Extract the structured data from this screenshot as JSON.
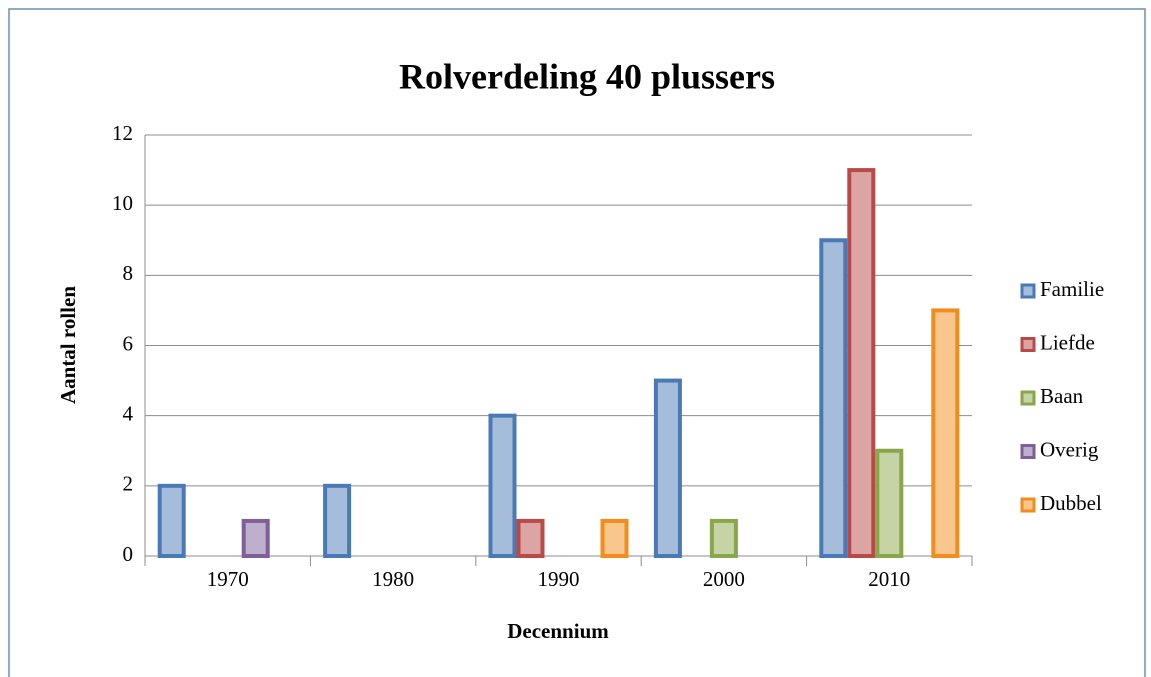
{
  "chart_data": {
    "type": "bar",
    "title": "Rolverdeling 40 plussers",
    "x_label": "Decennium",
    "y_label": "Aantal rollen",
    "categories": [
      "1970",
      "1980",
      "1990",
      "2000",
      "2010"
    ],
    "series": [
      {
        "name": "Familie",
        "color": "#4a7ab5",
        "values": [
          2,
          2,
          4,
          5,
          9
        ]
      },
      {
        "name": "Liefde",
        "color": "#b94a48",
        "values": [
          0,
          0,
          1,
          0,
          11
        ]
      },
      {
        "name": "Baan",
        "color": "#8aa64a",
        "values": [
          0,
          0,
          0,
          1,
          3
        ]
      },
      {
        "name": "Overig",
        "color": "#7d5f99",
        "values": [
          1,
          0,
          0,
          0,
          0
        ]
      },
      {
        "name": "Dubbel",
        "color": "#f28c1c",
        "values": [
          0,
          0,
          1,
          0,
          7
        ]
      }
    ],
    "ylim": [
      0,
      12
    ],
    "yticks": [
      0,
      2,
      4,
      6,
      8,
      10,
      12
    ],
    "grid": true,
    "legend": "right"
  }
}
